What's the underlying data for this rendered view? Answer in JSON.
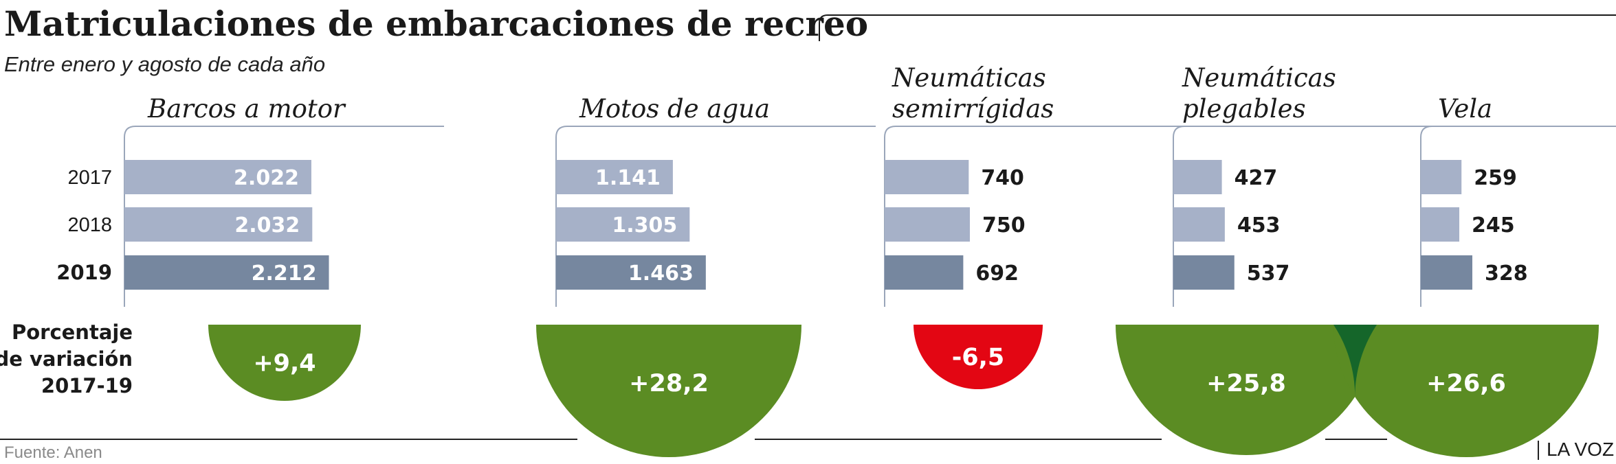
{
  "chart_data": {
    "type": "bar",
    "title": "Matriculaciones de embarcaciones de recreo",
    "subtitle": "Entre enero y agosto de cada año",
    "years": [
      "2017",
      "2018",
      "2019"
    ],
    "highlight_year": "2019",
    "variation_label": [
      "Porcentaje",
      "de variación",
      "2017-19"
    ],
    "groups": [
      {
        "name": [
          "Barcos a motor"
        ],
        "values": [
          2022,
          2032,
          2212
        ],
        "labels": [
          "2.022",
          "2.032",
          "2.212"
        ],
        "variation": 9.4,
        "variation_label": "+9,4"
      },
      {
        "name": [
          "Motos de agua"
        ],
        "values": [
          1141,
          1305,
          1463
        ],
        "labels": [
          "1.141",
          "1.305",
          "1.463"
        ],
        "variation": 28.2,
        "variation_label": "+28,2"
      },
      {
        "name": [
          "Neumáticas",
          "semirrígidas"
        ],
        "values": [
          740,
          750,
          692
        ],
        "labels": [
          "740",
          "750",
          "692"
        ],
        "variation": -6.5,
        "variation_label": "-6,5"
      },
      {
        "name": [
          "Neumáticas",
          "plegables"
        ],
        "values": [
          427,
          453,
          537
        ],
        "labels": [
          "427",
          "453",
          "537"
        ],
        "variation": 25.8,
        "variation_label": "+25,8"
      },
      {
        "name": [
          "Vela"
        ],
        "values": [
          259,
          245,
          328
        ],
        "labels": [
          "259",
          "245",
          "328"
        ],
        "variation": 26.6,
        "variation_label": "+26,6"
      }
    ],
    "source": "Fuente: Anen",
    "brand": "LA VOZ"
  },
  "colors": {
    "bar_light": "#a6b1c8",
    "bar_dark": "#76879f",
    "axis": "#9aa6ba",
    "positive": "#5b8c23",
    "negative": "#e30613",
    "overlap": "#15662a",
    "text": "#1a1a1a",
    "source": "#8a8a8a"
  }
}
